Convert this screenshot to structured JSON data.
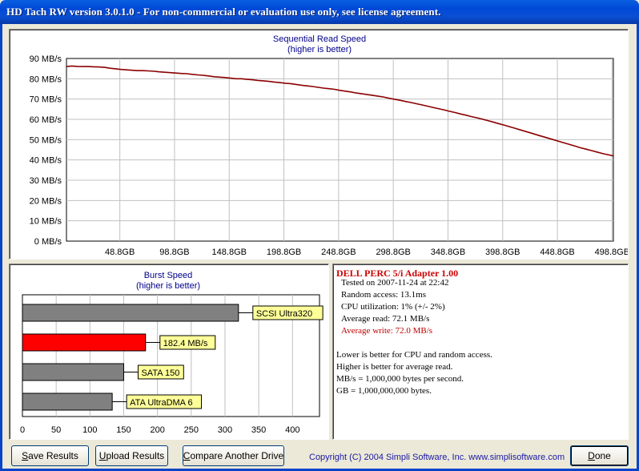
{
  "window": {
    "title": "HD Tach RW version 3.0.1.0  - For non-commercial or evaluation use only, see license agreement."
  },
  "sequential": {
    "title": "Sequential Read Speed",
    "subtitle": "(higher is better)",
    "line_color": "#8b0000"
  },
  "chart_data": [
    {
      "type": "line",
      "title": "Sequential Read Speed",
      "subtitle": "(higher is better)",
      "xlabel": "",
      "ylabel": "",
      "y_ticks": [
        "0 MB/s",
        "10 MB/s",
        "20 MB/s",
        "30 MB/s",
        "40 MB/s",
        "50 MB/s",
        "60 MB/s",
        "70 MB/s",
        "80 MB/s",
        "90 MB/s"
      ],
      "x_ticks": [
        "48.8GB",
        "98.8GB",
        "148.8GB",
        "198.8GB",
        "248.8GB",
        "298.8GB",
        "348.8GB",
        "398.8GB",
        "448.8GB",
        "498.8GB"
      ],
      "ylim": [
        0,
        90
      ],
      "xlim": [
        0,
        500
      ],
      "grid": true,
      "series": [
        {
          "x": [
            0,
            5,
            10,
            15,
            20,
            25,
            30,
            35,
            40,
            45,
            50,
            55,
            60,
            65,
            70,
            75,
            80,
            85,
            90,
            95,
            100,
            105,
            110,
            115,
            120,
            125,
            130,
            135,
            140,
            145,
            150,
            155,
            160,
            165,
            170,
            175,
            180,
            185,
            190,
            195,
            200,
            205,
            210,
            215,
            220,
            225,
            230,
            235,
            240,
            245,
            250,
            255,
            260,
            265,
            270,
            275,
            280,
            285,
            290,
            295,
            300,
            305,
            310,
            315,
            320,
            325,
            330,
            335,
            340,
            345,
            350,
            355,
            360,
            365,
            370,
            375,
            380,
            385,
            390,
            395,
            400,
            405,
            410,
            415,
            420,
            425,
            430,
            435,
            440,
            445,
            450,
            455,
            460,
            465,
            470,
            475,
            480,
            485,
            490,
            495,
            500
          ],
          "y": [
            86.0,
            86.3,
            86.1,
            86.0,
            86.0,
            85.9,
            85.8,
            85.6,
            85.2,
            84.9,
            84.6,
            84.4,
            84.2,
            84.0,
            84.0,
            83.9,
            83.7,
            83.4,
            83.2,
            83.0,
            82.8,
            82.6,
            82.5,
            82.2,
            81.9,
            81.7,
            81.4,
            81.0,
            80.8,
            80.6,
            80.3,
            80.0,
            80.0,
            79.7,
            79.5,
            79.2,
            79.0,
            78.7,
            78.4,
            78.1,
            77.8,
            77.6,
            77.2,
            76.8,
            76.5,
            76.2,
            75.8,
            75.4,
            75.1,
            74.8,
            74.3,
            73.9,
            73.5,
            73.0,
            72.6,
            72.2,
            71.8,
            71.4,
            71.0,
            70.4,
            69.9,
            69.4,
            68.8,
            68.3,
            67.7,
            67.1,
            66.5,
            65.9,
            65.3,
            64.7,
            64.0,
            63.4,
            62.7,
            62.1,
            61.4,
            60.8,
            60.1,
            59.4,
            58.7,
            57.9,
            57.2,
            56.4,
            55.6,
            54.8,
            54.0,
            53.2,
            52.4,
            51.6,
            50.8,
            50.0,
            49.2,
            48.4,
            47.6,
            46.8,
            46.0,
            45.3,
            44.6,
            43.9,
            43.2,
            42.6,
            42.0
          ]
        }
      ]
    },
    {
      "type": "bar",
      "title": "Burst Speed",
      "subtitle": "(higher is better)",
      "x_ticks": [
        "0",
        "50",
        "100",
        "150",
        "200",
        "250",
        "300",
        "350",
        "400"
      ],
      "xlim": [
        0,
        440
      ],
      "categories": [
        "SCSI Ultra320",
        "182.4 MB/s",
        "SATA 150",
        "ATA UltraDMA 6"
      ],
      "values": [
        320,
        182.4,
        150,
        133
      ],
      "colors": [
        "#808080",
        "#ff0000",
        "#808080",
        "#808080"
      ]
    }
  ],
  "burst": {
    "title": "Burst Speed",
    "subtitle": "(higher is better)"
  },
  "info": {
    "title": "DELL PERC 5/i Adapter 1.00",
    "lines": [
      "Tested on 2007-11-24 at 22:42",
      "Random access: 13.1ms",
      "CPU utilization: 1% (+/- 2%)",
      "Average read: 72.1 MB/s",
      "Average write: 72.0 MB/s"
    ],
    "notes": [
      "Lower is better for CPU and random access.",
      "Higher is better for average read.",
      "MB/s = 1,000,000 bytes per second.",
      "GB = 1,000,000,000 bytes."
    ]
  },
  "buttons": {
    "save": {
      "u": "S",
      "rest": "ave Results"
    },
    "upload": {
      "u": "U",
      "rest": "pload Results"
    },
    "compare": {
      "u": "C",
      "rest": "ompare Another Drive"
    },
    "done": {
      "u": "D",
      "rest": "one"
    }
  },
  "copyright": "Copyright (C) 2004 Simpli Software, Inc. www.simplisoftware.com"
}
